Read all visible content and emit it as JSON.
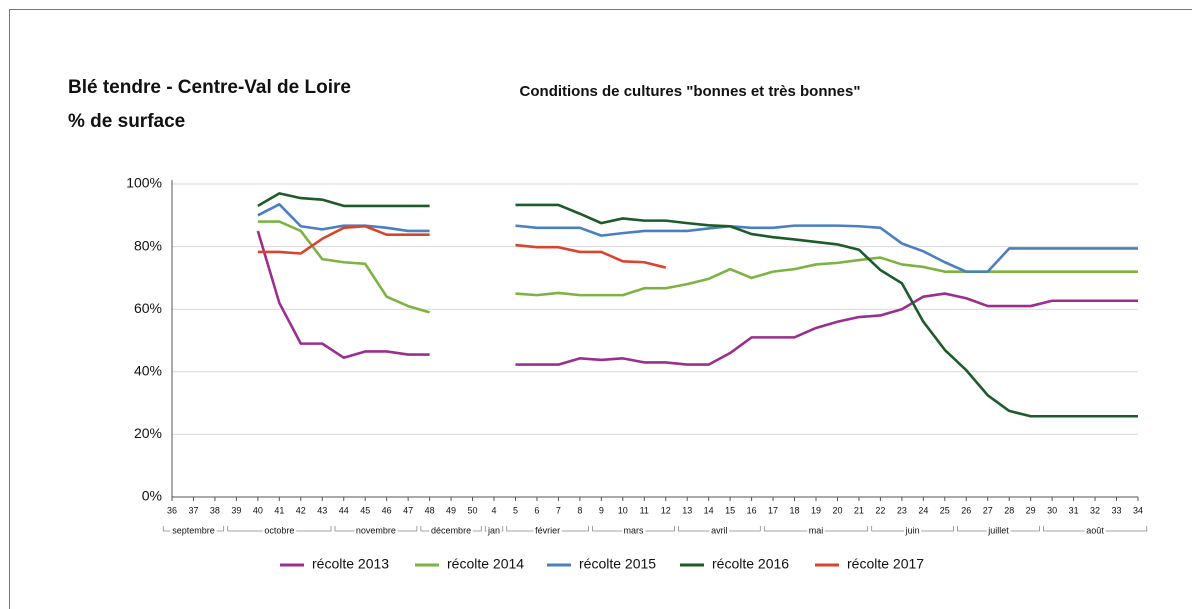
{
  "chart_data": {
    "type": "line",
    "title": "Blé tendre - Centre-Val de Loire",
    "y_label": "% de surface",
    "subtitle": "Conditions de cultures \"bonnes et très bonnes\"",
    "categories": [
      "36",
      "37",
      "38",
      "39",
      "40",
      "41",
      "42",
      "43",
      "44",
      "45",
      "46",
      "47",
      "48",
      "49",
      "50",
      "4",
      "5",
      "6",
      "7",
      "8",
      "9",
      "10",
      "11",
      "12",
      "13",
      "14",
      "15",
      "16",
      "17",
      "18",
      "19",
      "20",
      "21",
      "22",
      "23",
      "24",
      "25",
      "26",
      "27",
      "28",
      "29",
      "30",
      "31",
      "32",
      "33",
      "34"
    ],
    "months": [
      {
        "label": "septembre",
        "from": "36",
        "to": "38"
      },
      {
        "label": "octobre",
        "from": "39",
        "to": "43"
      },
      {
        "label": "novembre",
        "from": "44",
        "to": "47"
      },
      {
        "label": "décembre",
        "from": "48",
        "to": "50"
      },
      {
        "label": "jan",
        "from": "4",
        "to": "4"
      },
      {
        "label": "février",
        "from": "5",
        "to": "8"
      },
      {
        "label": "mars",
        "from": "9",
        "to": "12"
      },
      {
        "label": "avril",
        "from": "13",
        "to": "16"
      },
      {
        "label": "mai",
        "from": "17",
        "to": "21"
      },
      {
        "label": "juin",
        "from": "22",
        "to": "25"
      },
      {
        "label": "juillet",
        "from": "26",
        "to": "29"
      },
      {
        "label": "août",
        "from": "30",
        "to": "34"
      }
    ],
    "ylim": [
      0,
      100
    ],
    "yticks": [
      {
        "value": 0,
        "label": "0%"
      },
      {
        "value": 20,
        "label": "20%"
      },
      {
        "value": 40,
        "label": "40%"
      },
      {
        "value": 60,
        "label": "60%"
      },
      {
        "value": 80,
        "label": "80%"
      },
      {
        "value": 100,
        "label": "100%"
      }
    ],
    "grid": true,
    "legend": "bottom",
    "series": [
      {
        "name": "récolte 2013",
        "color": "#9b2e8f",
        "values": [
          null,
          null,
          null,
          null,
          85,
          62,
          49,
          49,
          44.5,
          46.5,
          46.5,
          45.5,
          45.5,
          null,
          null,
          null,
          42.3,
          42.3,
          42.3,
          44.3,
          43.8,
          44.3,
          43,
          43,
          42.3,
          42.3,
          46,
          51,
          51,
          51,
          54,
          56,
          57.5,
          58,
          60,
          64,
          65,
          63.5,
          61,
          61,
          61,
          62.7,
          62.7,
          62.7,
          62.7,
          62.7
        ]
      },
      {
        "name": "récolte 2014",
        "color": "#7cb342",
        "values": [
          null,
          null,
          null,
          null,
          88,
          88,
          85,
          76,
          75,
          74.5,
          64,
          61,
          59,
          null,
          null,
          null,
          65,
          64.5,
          65.2,
          64.5,
          64.5,
          64.5,
          66.7,
          66.7,
          68,
          69.7,
          72.8,
          70,
          72,
          72.8,
          74.3,
          74.8,
          75.7,
          76.5,
          74.3,
          73.5,
          72,
          72,
          72,
          72,
          72,
          72,
          72,
          72,
          72,
          72
        ]
      },
      {
        "name": "récolte 2015",
        "color": "#4a7fc1",
        "values": [
          null,
          null,
          null,
          null,
          90,
          93.5,
          86.5,
          85.5,
          86.7,
          86.7,
          86,
          85,
          85,
          null,
          null,
          null,
          86.7,
          86,
          86,
          86,
          83.5,
          84.3,
          85,
          85,
          85,
          85.8,
          86.5,
          86,
          86,
          86.7,
          86.7,
          86.7,
          86.5,
          86,
          81,
          78.5,
          75,
          72,
          72,
          79.4,
          79.4,
          79.4,
          79.4,
          79.4,
          79.4,
          79.4
        ]
      },
      {
        "name": "récolte 2016",
        "color": "#1e5b2a",
        "values": [
          null,
          null,
          null,
          null,
          93,
          97,
          95.5,
          95,
          93,
          93,
          93,
          93,
          93,
          null,
          null,
          null,
          93.3,
          93.3,
          93.3,
          90.5,
          87.5,
          89,
          88.3,
          88.3,
          87.5,
          86.8,
          86.5,
          84,
          83,
          82.3,
          81.5,
          80.7,
          79,
          72.5,
          68.3,
          56,
          47,
          40.5,
          32.5,
          27.5,
          25.8,
          25.8,
          25.8,
          25.8,
          25.8,
          25.8
        ]
      },
      {
        "name": "récolte 2017",
        "color": "#d9442f",
        "values": [
          null,
          null,
          null,
          null,
          78.3,
          78.3,
          77.8,
          82.5,
          86,
          86.5,
          83.8,
          83.8,
          83.8,
          null,
          null,
          null,
          80.5,
          79.8,
          79.8,
          78.3,
          78.3,
          75.3,
          75,
          73.3,
          null,
          null,
          null,
          null,
          null,
          null,
          null,
          null,
          null,
          null,
          null,
          null,
          null,
          null,
          null,
          null,
          null,
          null,
          null,
          null,
          null,
          null
        ]
      }
    ]
  }
}
